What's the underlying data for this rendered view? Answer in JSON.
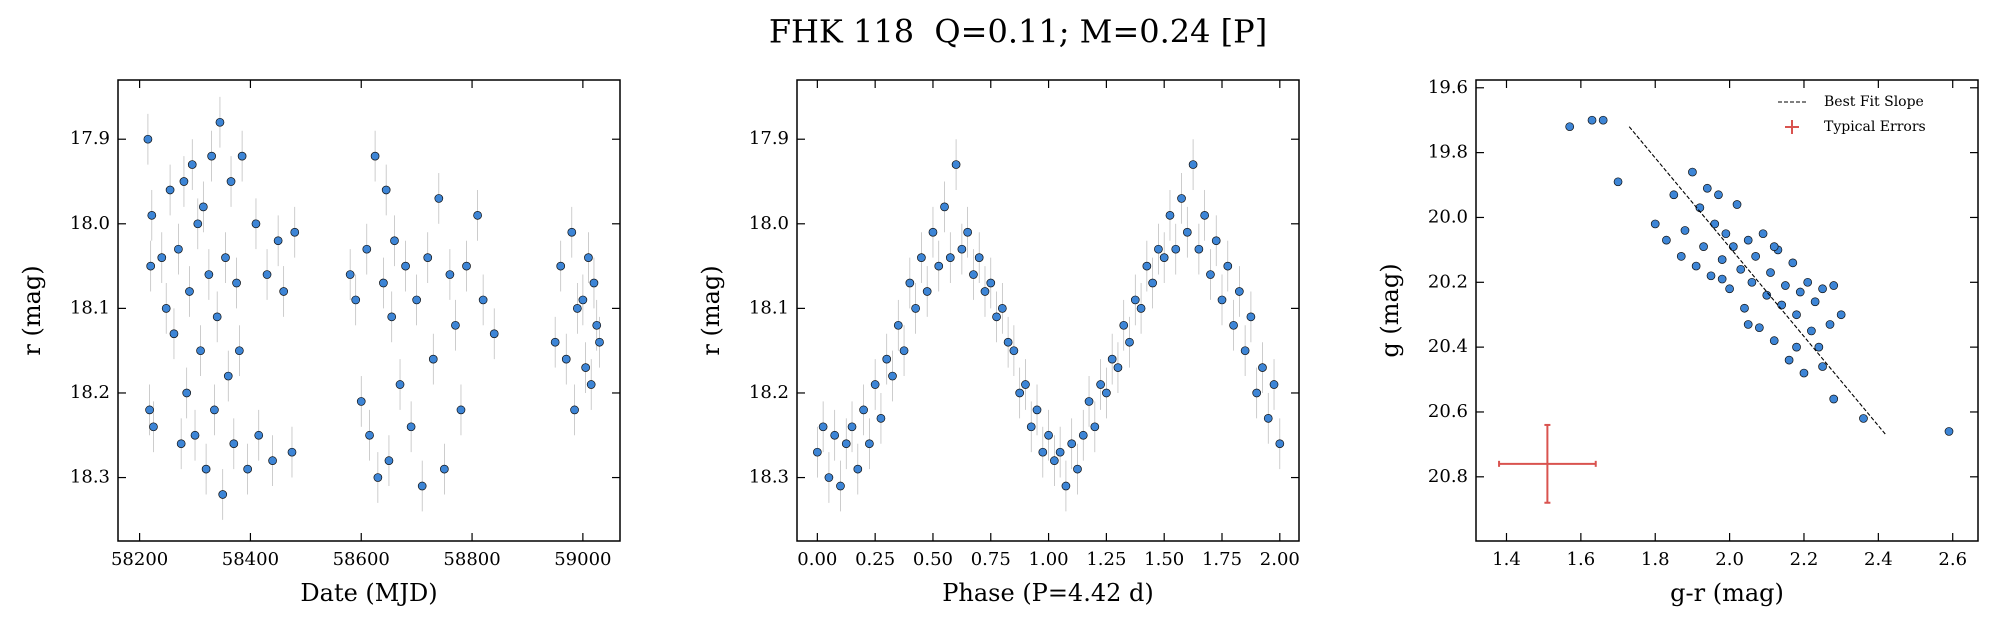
{
  "title": "FHK 118  Q=0.11; M=0.24 [P]",
  "chart_data": [
    {
      "type": "scatter",
      "xlabel": "Date (MJD)",
      "ylabel": "r (mag)",
      "color": "#3d85d6",
      "invert_y": true,
      "yerr": 0.03,
      "xlim": [
        58161,
        59067
      ],
      "ylim": [
        17.83,
        18.375
      ],
      "xticks": [
        58200,
        58400,
        58600,
        58800,
        59000
      ],
      "yticks": [
        17.9,
        {
          "value": 18,
          "label": "18.0"
        },
        18.1,
        18.2,
        18.3
      ],
      "x": [
        58215,
        58218,
        58220,
        58222,
        58225,
        58240,
        58248,
        58255,
        58262,
        58270,
        58275,
        58280,
        58285,
        58290,
        58295,
        58300,
        58305,
        58310,
        58315,
        58320,
        58325,
        58330,
        58335,
        58340,
        58345,
        58350,
        58355,
        58360,
        58365,
        58370,
        58375,
        58380,
        58385,
        58395,
        58410,
        58415,
        58430,
        58440,
        58450,
        58460,
        58475,
        58480,
        58580,
        58590,
        58600,
        58610,
        58615,
        58625,
        58630,
        58640,
        58645,
        58650,
        58655,
        58660,
        58670,
        58680,
        58690,
        58700,
        58710,
        58720,
        58730,
        58740,
        58750,
        58760,
        58770,
        58780,
        58790,
        58810,
        58820,
        58840,
        58950,
        58960,
        58970,
        58980,
        58985,
        58990,
        59000,
        59005,
        59010,
        59015,
        59020,
        59025,
        59030
      ],
      "values": [
        17.9,
        18.22,
        18.05,
        17.99,
        18.24,
        18.04,
        18.1,
        17.96,
        18.13,
        18.03,
        18.26,
        17.95,
        18.2,
        18.08,
        17.93,
        18.25,
        18.0,
        18.15,
        17.98,
        18.29,
        18.06,
        17.92,
        18.22,
        18.11,
        17.88,
        18.32,
        18.04,
        18.18,
        17.95,
        18.26,
        18.07,
        18.15,
        17.92,
        18.29,
        18.0,
        18.25,
        18.06,
        18.28,
        18.02,
        18.08,
        18.27,
        18.01,
        18.06,
        18.09,
        18.21,
        18.03,
        18.25,
        17.92,
        18.3,
        18.07,
        17.96,
        18.28,
        18.11,
        18.02,
        18.19,
        18.05,
        18.24,
        18.09,
        18.31,
        18.04,
        18.16,
        17.97,
        18.29,
        18.06,
        18.12,
        18.22,
        18.05,
        17.99,
        18.09,
        18.13,
        18.14,
        18.05,
        18.16,
        18.01,
        18.22,
        18.1,
        18.09,
        18.17,
        18.04,
        18.19,
        18.07,
        18.12,
        18.14
      ]
    },
    {
      "type": "scatter",
      "xlabel": "Phase (P=4.42 d)",
      "ylabel": "r (mag)",
      "color": "#3d85d6",
      "invert_y": true,
      "yerr": 0.03,
      "xlim": [
        -0.088,
        2.083
      ],
      "ylim": [
        17.83,
        18.375
      ],
      "xticks": [
        {
          "value": 0,
          "label": "0.00"
        },
        {
          "value": 0.25,
          "label": "0.25"
        },
        {
          "value": 0.5,
          "label": "0.50"
        },
        {
          "value": 0.75,
          "label": "0.75"
        },
        {
          "value": 1,
          "label": "1.00"
        },
        {
          "value": 1.25,
          "label": "1.25"
        },
        {
          "value": 1.5,
          "label": "1.50"
        },
        {
          "value": 1.75,
          "label": "1.75"
        },
        {
          "value": 2,
          "label": "2.00"
        }
      ],
      "yticks": [
        17.9,
        {
          "value": 18,
          "label": "18.0"
        },
        18.1,
        18.2,
        18.3
      ],
      "x": [
        0,
        0.025,
        0.05,
        0.075,
        0.1,
        0.125,
        0.15,
        0.175,
        0.2,
        0.225,
        0.25,
        0.275,
        0.3,
        0.325,
        0.35,
        0.375,
        0.4,
        0.425,
        0.45,
        0.475,
        0.5,
        0.525,
        0.55,
        0.575,
        0.6,
        0.625,
        0.65,
        0.675,
        0.7,
        0.725,
        0.75,
        0.775,
        0.8,
        0.825,
        0.85,
        0.875,
        0.9,
        0.925,
        0.95,
        0.975,
        1,
        1.025,
        1.05,
        1.075,
        1.1,
        1.125,
        1.15,
        1.175,
        1.2,
        1.225,
        1.25,
        1.275,
        1.3,
        1.325,
        1.35,
        1.375,
        1.4,
        1.425,
        1.45,
        1.475,
        1.5,
        1.525,
        1.55,
        1.575,
        1.6,
        1.625,
        1.65,
        1.675,
        1.7,
        1.725,
        1.75,
        1.775,
        1.8,
        1.825,
        1.85,
        1.875,
        1.9,
        1.925,
        1.95,
        1.975,
        2
      ],
      "values": [
        18.27,
        18.24,
        18.3,
        18.25,
        18.31,
        18.26,
        18.24,
        18.29,
        18.22,
        18.26,
        18.19,
        18.23,
        18.16,
        18.18,
        18.12,
        18.15,
        18.07,
        18.1,
        18.04,
        18.08,
        18.01,
        18.05,
        17.98,
        18.04,
        17.93,
        18.03,
        18.01,
        18.06,
        18.04,
        18.08,
        18.07,
        18.11,
        18.1,
        18.14,
        18.15,
        18.2,
        18.19,
        18.24,
        18.22,
        18.27,
        18.25,
        18.28,
        18.27,
        18.31,
        18.26,
        18.29,
        18.25,
        18.21,
        18.24,
        18.19,
        18.2,
        18.16,
        18.17,
        18.12,
        18.14,
        18.09,
        18.1,
        18.05,
        18.07,
        18.03,
        18.04,
        17.99,
        18.03,
        17.97,
        18.01,
        17.93,
        18.03,
        17.99,
        18.06,
        18.02,
        18.09,
        18.05,
        18.12,
        18.08,
        18.15,
        18.11,
        18.2,
        18.17,
        18.23,
        18.19,
        18.26
      ]
    },
    {
      "type": "scatter",
      "xlabel": "g-r (mag)",
      "ylabel": "g (mag)",
      "color": "#3d85d6",
      "invert_y": true,
      "xlim": [
        1.318,
        2.668
      ],
      "ylim": [
        19.576,
        20.998
      ],
      "xticks": [
        1.4,
        1.6,
        1.8,
        {
          "value": 2,
          "label": "2.0"
        },
        2.2,
        2.4,
        2.6
      ],
      "yticks": [
        19.6,
        19.8,
        {
          "value": 20,
          "label": "20.0"
        },
        20.2,
        20.4,
        20.6,
        20.8
      ],
      "legend": "upper right",
      "x": [
        1.57,
        1.63,
        1.66,
        1.7,
        1.8,
        1.83,
        1.85,
        1.87,
        1.88,
        1.9,
        1.91,
        1.92,
        1.93,
        1.94,
        1.95,
        1.96,
        1.97,
        1.98,
        1.99,
        2.0,
        2.01,
        2.02,
        2.03,
        2.04,
        2.05,
        2.06,
        2.07,
        2.08,
        2.09,
        2.1,
        2.11,
        2.12,
        2.13,
        2.14,
        2.15,
        2.16,
        2.17,
        2.18,
        2.19,
        2.2,
        2.21,
        2.22,
        2.23,
        2.24,
        2.25,
        2.27,
        2.28,
        2.3,
        2.28,
        2.36,
        2.59,
        2.05,
        2.12,
        1.98,
        2.18,
        2.25
      ],
      "values": [
        19.72,
        19.7,
        19.7,
        19.89,
        20.02,
        20.07,
        19.93,
        20.12,
        20.04,
        19.86,
        20.15,
        19.97,
        20.09,
        19.91,
        20.18,
        20.02,
        19.93,
        20.13,
        20.05,
        20.22,
        20.09,
        19.96,
        20.16,
        20.28,
        20.07,
        20.2,
        20.12,
        20.34,
        20.05,
        20.24,
        20.17,
        20.38,
        20.1,
        20.27,
        20.21,
        20.44,
        20.14,
        20.3,
        20.23,
        20.48,
        20.2,
        20.35,
        20.26,
        20.4,
        20.22,
        20.33,
        20.21,
        20.3,
        20.56,
        20.62,
        20.66,
        20.33,
        20.09,
        20.19,
        20.4,
        20.46
      ],
      "fit_line": {
        "name": "Best Fit Slope",
        "color": "#000000",
        "x": [
          1.73,
          2.42
        ],
        "values": [
          19.72,
          20.67
        ]
      },
      "typical_errors": {
        "name": "Typical Errors",
        "color": "#d9534f",
        "x": 1.51,
        "y": 20.76,
        "xerr": 0.13,
        "yerr": 0.12
      }
    }
  ]
}
